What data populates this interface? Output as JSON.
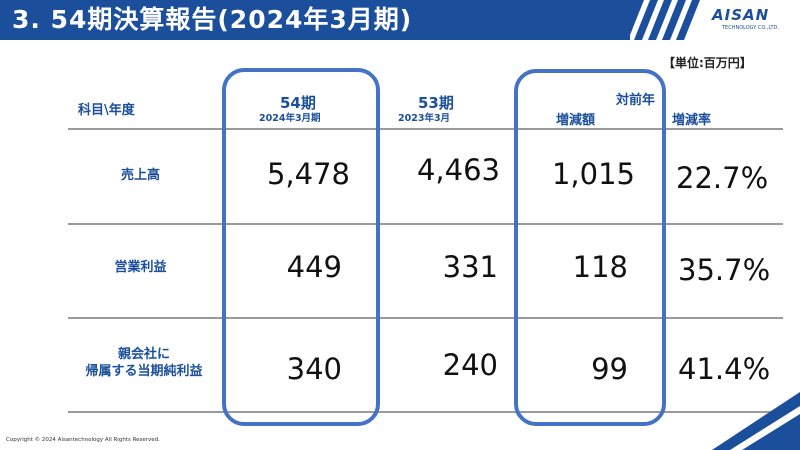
{
  "header": {
    "title": "3. 54期決算報告(2024年3月期)",
    "logo_main": "AISAN",
    "logo_sub": "TECHNOLOGY CO.,LTD."
  },
  "unit": "【単位:百万円】",
  "table": {
    "col_item": "科目\\年度",
    "col_current": "54期",
    "col_current_sub": "2024年3月期",
    "col_prev": "53期",
    "col_prev_sub": "2023年3月",
    "col_vs_prev": "対前年",
    "col_change": "増減額",
    "col_rate": "増減率",
    "rows": [
      {
        "label": "売上高",
        "current": "5,478",
        "prev": "4,463",
        "change": "1,015",
        "rate": "22.7%"
      },
      {
        "label": "営業利益",
        "current": "449",
        "prev": "331",
        "change": "118",
        "rate": "35.7%"
      },
      {
        "label_line1": "親会社に",
        "label_line2": "帰属する当期純利益",
        "current": "340",
        "prev": "240",
        "change": "99",
        "rate": "41.4%"
      }
    ]
  },
  "footer": "Copyright © 2024 Aisantechnology All Rights Reserved.",
  "colors": {
    "brand": "#1b4f9c",
    "highlight": "#4472c4"
  }
}
